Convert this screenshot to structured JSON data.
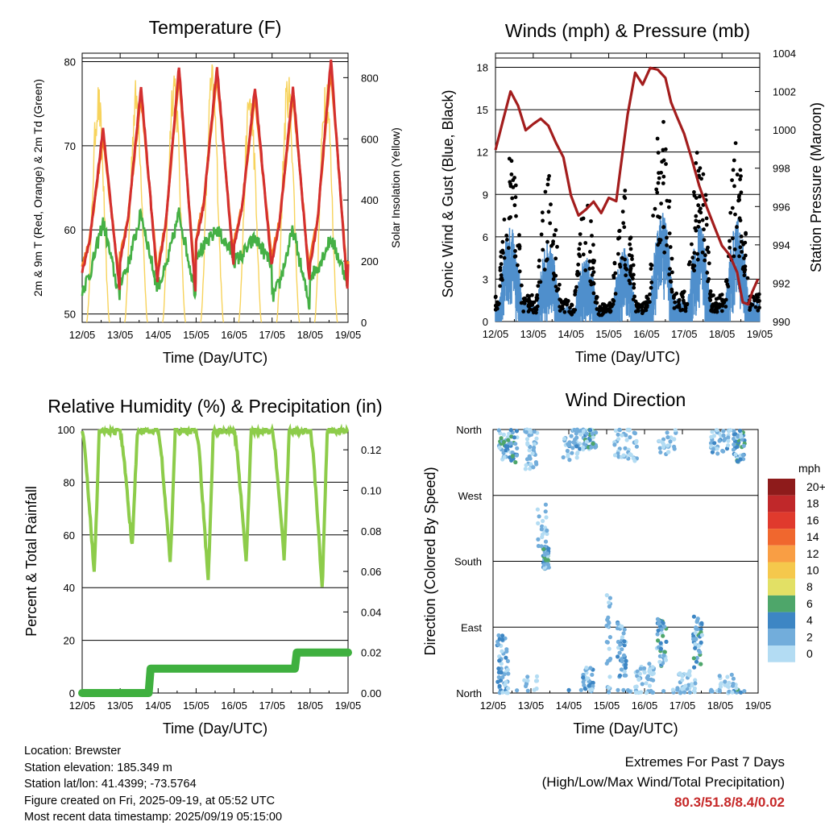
{
  "time_ticks": [
    "12/05",
    "13/05",
    "14/05",
    "15/05",
    "16/05",
    "17/05",
    "18/05",
    "19/05"
  ],
  "chart_data": [
    {
      "type": "line",
      "title": "Temperature (F)",
      "xlabel": "Time (Day/UTC)",
      "ylabel": "2m & 9m T (Red, Orange) & 2m Td (Green)",
      "y2label": "Solar Insolation (Yellow)",
      "x_range_days": [
        0,
        7
      ],
      "ylim": [
        49,
        81
      ],
      "y_ticks": [
        "50",
        "60",
        "70",
        "80"
      ],
      "y2lim": [
        0,
        880
      ],
      "y2_ticks": [
        "0",
        "200",
        "400",
        "600",
        "800"
      ],
      "colors": {
        "t2m": "#d32f2f",
        "t9m": "#f57c1f",
        "td": "#45b045",
        "solar": "#f7d35c"
      },
      "daily_extrema": {
        "t2m_max": [
          72,
          77,
          79.5,
          79.5,
          77,
          77,
          80.3
        ],
        "t2m_min": [
          53,
          54,
          52.5,
          56,
          56,
          54,
          53,
          56
        ],
        "td_day": [
          61,
          62,
          62,
          60,
          59,
          60,
          59
        ],
        "td_night": [
          52,
          53,
          52.5,
          57,
          56,
          51,
          54,
          57
        ],
        "solar_peak": [
          790,
          805,
          870,
          855,
          800,
          835,
          845
        ]
      },
      "series": [
        {
          "name": "2m T"
        },
        {
          "name": "9m T"
        },
        {
          "name": "2m Td"
        },
        {
          "name": "Solar Insolation"
        }
      ]
    },
    {
      "type": "line",
      "title": "Winds (mph) & Pressure (mb)",
      "xlabel": "Time (Day/UTC)",
      "ylabel": "Sonic Wind & Gust (Blue, Black)",
      "y2label": "Station Pressure (Maroon)",
      "x_range_days": [
        0,
        7
      ],
      "ylim": [
        0,
        19
      ],
      "y_ticks": [
        "0",
        "3",
        "6",
        "9",
        "12",
        "15",
        "18"
      ],
      "y2lim": [
        990,
        1004
      ],
      "y2_ticks": [
        "990",
        "992",
        "994",
        "996",
        "998",
        "1000",
        "1002",
        "1004"
      ],
      "colors": {
        "wind": "#4f8fcc",
        "gust": "#000000",
        "pressure": "#a31d1d"
      },
      "pressure_points": [
        [
          0,
          999
        ],
        [
          0.2,
          1000.5
        ],
        [
          0.4,
          1002
        ],
        [
          0.6,
          1001.2
        ],
        [
          0.8,
          1000
        ],
        [
          1.0,
          1000.3
        ],
        [
          1.2,
          1000.6
        ],
        [
          1.4,
          1000.2
        ],
        [
          1.6,
          999.4
        ],
        [
          1.8,
          998.5
        ],
        [
          2.0,
          996.5
        ],
        [
          2.2,
          995.5
        ],
        [
          2.4,
          995.8
        ],
        [
          2.6,
          996.2
        ],
        [
          2.8,
          995.6
        ],
        [
          3.0,
          996.5
        ],
        [
          3.2,
          996.3
        ],
        [
          3.3,
          997.8
        ],
        [
          3.5,
          1000.8
        ],
        [
          3.7,
          1003.0
        ],
        [
          3.9,
          1002.4
        ],
        [
          4.1,
          1003.2
        ],
        [
          4.3,
          1003.1
        ],
        [
          4.5,
          1002.7
        ],
        [
          4.65,
          1001.4
        ],
        [
          4.8,
          1000.7
        ],
        [
          5.0,
          999.8
        ],
        [
          5.2,
          998.5
        ],
        [
          5.4,
          997.0
        ],
        [
          5.6,
          996.0
        ],
        [
          5.8,
          995.0
        ],
        [
          6.0,
          994.0
        ],
        [
          6.2,
          993.5
        ],
        [
          6.4,
          992.5
        ],
        [
          6.55,
          991.0
        ],
        [
          6.7,
          990.9
        ],
        [
          6.8,
          991.6
        ],
        [
          6.95,
          992.2
        ]
      ],
      "gust_peaks": [
        12.5,
        10.5,
        8.5,
        9.5,
        14.8,
        12.5,
        13.5
      ],
      "series": [
        {
          "name": "Sonic Wind"
        },
        {
          "name": "Gust"
        },
        {
          "name": "Station Pressure"
        }
      ]
    },
    {
      "type": "line",
      "title": "Relative Humidity (%) & Precipitation (in)",
      "xlabel": "Time (Day/UTC)",
      "ylabel": "Percent & Total Rainfall",
      "x_range_days": [
        0,
        7
      ],
      "ylim": [
        0,
        100
      ],
      "y_ticks": [
        "0",
        "20",
        "40",
        "60",
        "80",
        "100"
      ],
      "y2lim": [
        0,
        0.13
      ],
      "y2_ticks": [
        "0.00",
        "0.02",
        "0.04",
        "0.06",
        "0.08",
        "0.10",
        "0.12"
      ],
      "colors": {
        "rh": "#8dcc4a",
        "precip": "#3fb03f"
      },
      "rh_daily_min": [
        45,
        55,
        49,
        42,
        50,
        51,
        39
      ],
      "precip_steps": [
        [
          0,
          0.0
        ],
        [
          1.75,
          0.0
        ],
        [
          1.8,
          0.012
        ],
        [
          5.6,
          0.012
        ],
        [
          5.65,
          0.02
        ],
        [
          7,
          0.02
        ]
      ],
      "series": [
        {
          "name": "Relative Humidity"
        },
        {
          "name": "Total Precipitation"
        }
      ]
    },
    {
      "type": "scatter",
      "title": "Wind Direction",
      "xlabel": "Time (Day/UTC)",
      "ylabel": "Direction (Colored By Speed)",
      "x_range_days": [
        0,
        7
      ],
      "y_ticks": [
        "North",
        "East",
        "South",
        "West",
        "North"
      ],
      "legend": {
        "title": "mph",
        "placement": "right",
        "labels": [
          "20+",
          "18",
          "16",
          "14",
          "12",
          "10",
          "8",
          "6",
          "4",
          "2",
          "0"
        ],
        "colors": [
          "#8e1b1b",
          "#c0282a",
          "#e03a2d",
          "#f0672e",
          "#f99e44",
          "#f5c84c",
          "#e2e065",
          "#4ea66a",
          "#3d86c4",
          "#72addb",
          "#b3dcf3"
        ]
      }
    }
  ],
  "footer": {
    "location": "Location: Brewster",
    "elevation": "Station elevation: 185.349 m",
    "latlon": "Station lat/lon: 41.4399; -73.5764",
    "created": "Figure created on Fri, 2025-09-19, at 05:52 UTC",
    "latest": "Most recent data timestamp: 2025/09/19 05:15:00"
  },
  "extremes": {
    "line1": "Extremes For Past 7 Days",
    "line2": "(High/Low/Max Wind/Total Precipitation)",
    "values": "80.3/51.8/8.4/0.02"
  }
}
